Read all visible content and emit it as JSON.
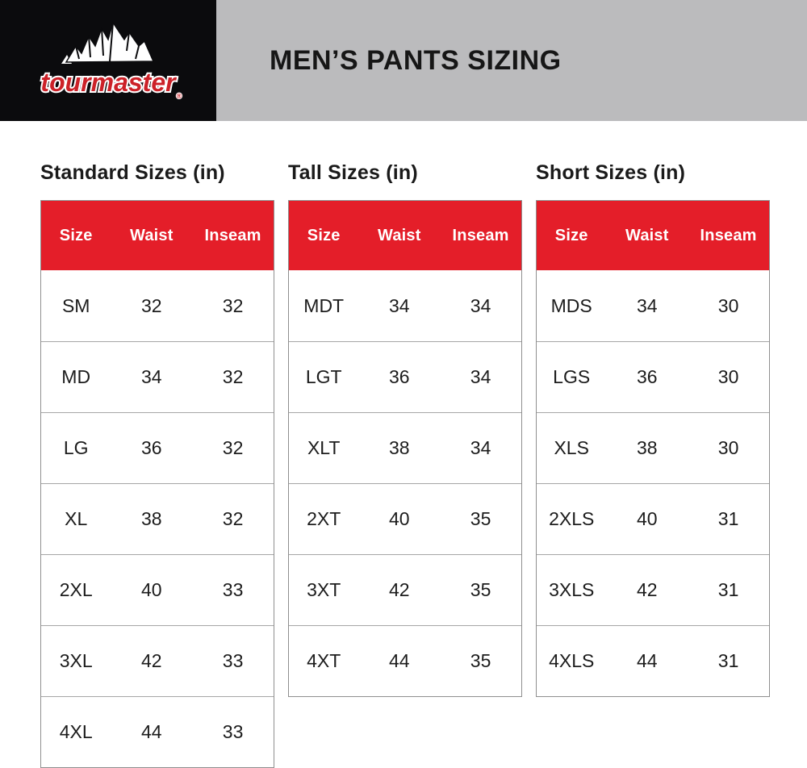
{
  "header": {
    "brand": "tourmaster",
    "brand_reg_mark": "®",
    "title": "MEN’S PANTS SIZING"
  },
  "icons": {
    "logo": "mountain-range-icon"
  },
  "colors": {
    "accent_red": "#e41e29",
    "logo_red": "#cc2128",
    "banner_gray": "#bbbbbd",
    "logo_black": "#0b0b0d",
    "table_border": "#8f8f8f",
    "row_divider": "#a6a6a6",
    "header_text": "#ffffff",
    "body_text": "#1c1c1c"
  },
  "chart_data": [
    {
      "type": "table",
      "title": "Standard Sizes (in)",
      "columns": [
        "Size",
        "Waist",
        "Inseam"
      ],
      "rows": [
        [
          "SM",
          "32",
          "32"
        ],
        [
          "MD",
          "34",
          "32"
        ],
        [
          "LG",
          "36",
          "32"
        ],
        [
          "XL",
          "38",
          "32"
        ],
        [
          "2XL",
          "40",
          "33"
        ],
        [
          "3XL",
          "42",
          "33"
        ],
        [
          "4XL",
          "44",
          "33"
        ]
      ]
    },
    {
      "type": "table",
      "title": "Tall Sizes (in)",
      "columns": [
        "Size",
        "Waist",
        "Inseam"
      ],
      "rows": [
        [
          "MDT",
          "34",
          "34"
        ],
        [
          "LGT",
          "36",
          "34"
        ],
        [
          "XLT",
          "38",
          "34"
        ],
        [
          "2XT",
          "40",
          "35"
        ],
        [
          "3XT",
          "42",
          "35"
        ],
        [
          "4XT",
          "44",
          "35"
        ]
      ]
    },
    {
      "type": "table",
      "title": "Short Sizes (in)",
      "columns": [
        "Size",
        "Waist",
        "Inseam"
      ],
      "rows": [
        [
          "MDS",
          "34",
          "30"
        ],
        [
          "LGS",
          "36",
          "30"
        ],
        [
          "XLS",
          "38",
          "30"
        ],
        [
          "2XLS",
          "40",
          "31"
        ],
        [
          "3XLS",
          "42",
          "31"
        ],
        [
          "4XLS",
          "44",
          "31"
        ]
      ]
    }
  ]
}
